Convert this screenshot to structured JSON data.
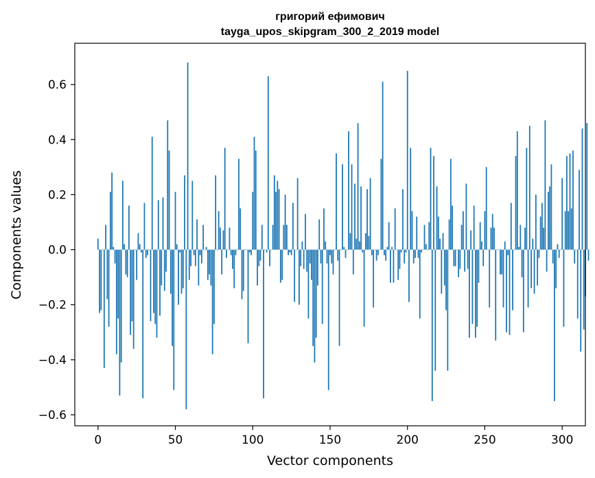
{
  "chart_data": {
    "type": "bar",
    "title_line1": "григорий ефимович",
    "title_line2": "tayga_upos_skipgram_300_2_2019 model",
    "xlabel": "Vector components",
    "ylabel": "Components values",
    "xlim": [
      -15,
      315
    ],
    "ylim": [
      -0.64,
      0.75
    ],
    "xticks": [
      0,
      50,
      100,
      150,
      200,
      250,
      300
    ],
    "yticks": [
      -0.6,
      -0.4,
      -0.2,
      0.0,
      0.2,
      0.4,
      0.6
    ],
    "ytick_labels": [
      "−0.6",
      "−0.4",
      "−0.2",
      "0.0",
      "0.2",
      "0.4",
      "0.6"
    ],
    "xtick_labels": [
      "0",
      "50",
      "100",
      "150",
      "200",
      "250",
      "300"
    ],
    "bar_color": "#1f77b4",
    "values": [
      0.04,
      -0.23,
      -0.22,
      0.0,
      -0.43,
      0.09,
      -0.18,
      -0.28,
      0.21,
      0.28,
      0.01,
      -0.05,
      -0.38,
      -0.25,
      -0.53,
      -0.41,
      0.25,
      0.02,
      -0.09,
      -0.1,
      0.16,
      -0.31,
      -0.26,
      -0.36,
      0.0,
      -0.11,
      0.06,
      0.02,
      -0.01,
      -0.54,
      0.17,
      -0.03,
      -0.02,
      0.0,
      -0.26,
      0.41,
      -0.23,
      -0.27,
      -0.32,
      0.18,
      -0.24,
      -0.13,
      0.19,
      -0.15,
      -0.08,
      0.47,
      0.36,
      -0.16,
      -0.35,
      -0.51,
      0.21,
      0.02,
      -0.2,
      -0.01,
      -0.16,
      -0.14,
      0.27,
      -0.58,
      0.68,
      -0.11,
      -0.06,
      0.25,
      -0.02,
      -0.06,
      0.11,
      -0.13,
      -0.02,
      -0.05,
      0.09,
      0.0,
      0.01,
      -0.11,
      -0.09,
      -0.13,
      -0.38,
      -0.27,
      0.27,
      0.0,
      0.14,
      0.08,
      -0.09,
      0.07,
      0.37,
      -0.03,
      0.0,
      0.08,
      -0.02,
      -0.07,
      -0.14,
      -0.02,
      0.0,
      0.33,
      0.15,
      -0.18,
      -0.15,
      0.0,
      0.0,
      -0.34,
      -0.01,
      -0.02,
      0.21,
      0.41,
      0.36,
      -0.13,
      -0.06,
      -0.04,
      0.09,
      -0.54,
      0.0,
      -0.01,
      0.63,
      -0.06,
      0.0,
      0.09,
      0.27,
      0.21,
      0.25,
      0.22,
      -0.12,
      -0.11,
      0.09,
      0.2,
      0.09,
      -0.02,
      -0.01,
      -0.02,
      0.17,
      -0.19,
      0.0,
      0.26,
      -0.2,
      -0.06,
      0.03,
      -0.07,
      0.13,
      -0.08,
      -0.25,
      -0.05,
      -0.11,
      -0.35,
      -0.41,
      -0.32,
      -0.13,
      0.11,
      -0.05,
      -0.27,
      0.15,
      0.03,
      -0.05,
      -0.51,
      -0.02,
      -0.05,
      -0.09,
      0.0,
      0.35,
      -0.04,
      -0.35,
      0.0,
      0.31,
      0.01,
      -0.03,
      0.0,
      0.43,
      0.06,
      0.31,
      -0.09,
      0.24,
      0.04,
      0.46,
      0.03,
      0.23,
      -0.01,
      -0.28,
      0.06,
      0.22,
      0.05,
      0.26,
      -0.02,
      -0.21,
      0.0,
      -0.04,
      -0.02,
      0.0,
      0.33,
      0.61,
      -0.02,
      -0.04,
      0.01,
      0.1,
      -0.12,
      0.01,
      -0.12,
      0.15,
      0.0,
      -0.11,
      -0.07,
      -0.01,
      0.22,
      -0.05,
      -0.01,
      0.65,
      -0.19,
      0.37,
      0.14,
      -0.05,
      -0.03,
      0.12,
      -0.03,
      -0.25,
      -0.01,
      0.0,
      0.09,
      0.02,
      0.0,
      0.1,
      0.37,
      -0.55,
      0.34,
      -0.44,
      0.23,
      0.12,
      0.04,
      -0.16,
      0.06,
      -0.13,
      -0.22,
      -0.44,
      0.11,
      0.33,
      0.16,
      -0.06,
      -0.06,
      0.0,
      -0.1,
      -0.07,
      0.09,
      0.14,
      -0.08,
      0.24,
      -0.07,
      -0.32,
      0.07,
      -0.27,
      0.16,
      -0.32,
      -0.28,
      -0.12,
      0.1,
      0.03,
      -0.06,
      0.14,
      0.3,
      0.0,
      -0.21,
      0.08,
      0.13,
      0.08,
      -0.33,
      0.0,
      0.0,
      -0.09,
      -0.09,
      -0.21,
      0.03,
      -0.3,
      -0.02,
      -0.31,
      0.17,
      -0.22,
      0.0,
      0.34,
      0.43,
      0.01,
      0.09,
      -0.1,
      -0.3,
      0.08,
      0.37,
      -0.21,
      0.45,
      -0.14,
      0.04,
      -0.16,
      0.2,
      -0.13,
      -0.03,
      0.12,
      0.17,
      0.08,
      0.47,
      -0.08,
      0.21,
      0.23,
      0.31,
      -0.05,
      -0.55,
      -0.14,
      0.02,
      -0.03,
      0.0,
      0.26,
      -0.28,
      0.14,
      0.34,
      0.14,
      0.35,
      0.15,
      0.36,
      -0.05,
      0.0,
      -0.25,
      0.29,
      -0.37,
      0.44,
      -0.29,
      -0.17,
      0.46,
      -0.04
    ]
  }
}
